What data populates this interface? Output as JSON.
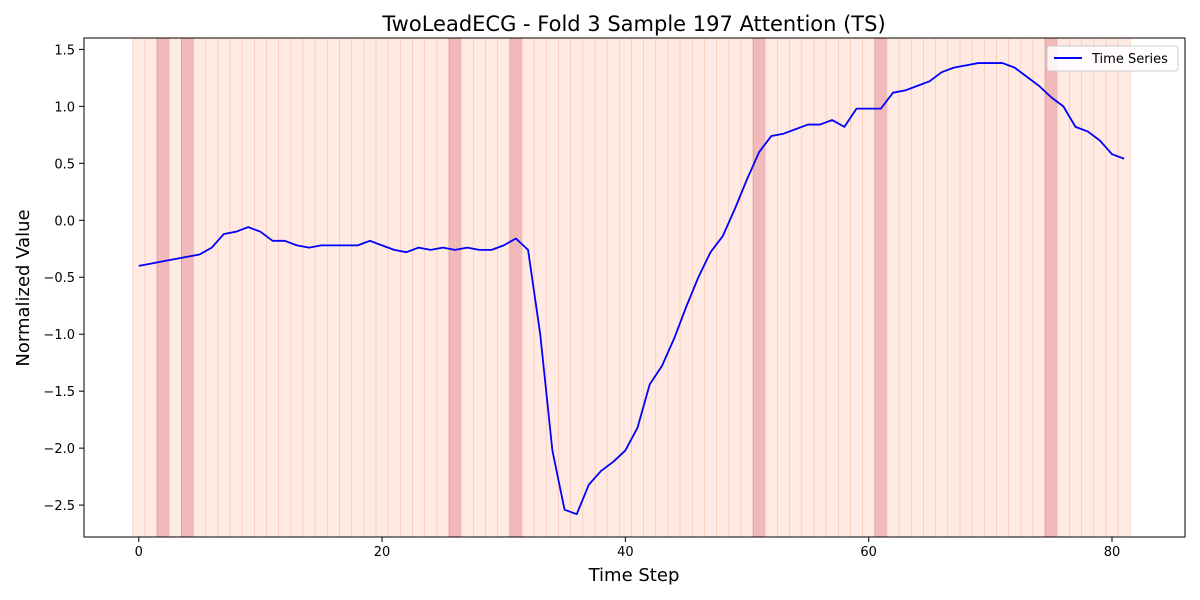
{
  "chart_data": {
    "type": "line",
    "title": "TwoLeadECG - Fold 3 Sample 197 Attention (TS)",
    "xlabel": "Time Step",
    "ylabel": "Normalized Value",
    "xlim": [
      -4.5,
      86
    ],
    "ylim": [
      -2.78,
      1.6
    ],
    "xticks": [
      0,
      20,
      40,
      60,
      80
    ],
    "yticks": [
      1.5,
      1.0,
      0.5,
      0.0,
      -0.5,
      -1.0,
      -1.5,
      -2.0,
      -2.5
    ],
    "xtick_labels": [
      "0",
      "20",
      "40",
      "60",
      "80"
    ],
    "ytick_labels": [
      "1.5",
      "1.0",
      "0.5",
      "0.0",
      "−0.5",
      "−1.0",
      "−1.5",
      "−2.0",
      "−2.5"
    ],
    "legend": {
      "position": "top-right",
      "entries": [
        "Time Series"
      ]
    },
    "colors": {
      "line": "#0000ff",
      "attention_low": "#fdd9cc",
      "attention_high": "#e88a8a"
    },
    "attention_high_steps": [
      2,
      4,
      26,
      31,
      51,
      61,
      75
    ],
    "series": [
      {
        "name": "Time Series",
        "x": [
          0,
          1,
          2,
          3,
          4,
          5,
          6,
          7,
          8,
          9,
          10,
          11,
          12,
          13,
          14,
          15,
          16,
          17,
          18,
          19,
          20,
          21,
          22,
          23,
          24,
          25,
          26,
          27,
          28,
          29,
          30,
          31,
          32,
          33,
          34,
          35,
          36,
          37,
          38,
          39,
          40,
          41,
          42,
          43,
          44,
          45,
          46,
          47,
          48,
          49,
          50,
          51,
          52,
          53,
          54,
          55,
          56,
          57,
          58,
          59,
          60,
          61,
          62,
          63,
          64,
          65,
          66,
          67,
          68,
          69,
          70,
          71,
          72,
          73,
          74,
          75,
          76,
          77,
          78,
          79,
          80,
          81
        ],
        "values": [
          -0.4,
          -0.38,
          -0.36,
          -0.34,
          -0.32,
          -0.3,
          -0.24,
          -0.12,
          -0.1,
          -0.06,
          -0.1,
          -0.18,
          -0.18,
          -0.22,
          -0.24,
          -0.22,
          -0.22,
          -0.22,
          -0.22,
          -0.18,
          -0.22,
          -0.26,
          -0.28,
          -0.24,
          -0.26,
          -0.24,
          -0.26,
          -0.24,
          -0.26,
          -0.26,
          -0.22,
          -0.16,
          -0.26,
          -1.0,
          -2.02,
          -2.54,
          -2.58,
          -2.32,
          -2.2,
          -2.12,
          -2.02,
          -1.82,
          -1.44,
          -1.28,
          -1.04,
          -0.76,
          -0.5,
          -0.28,
          -0.14,
          0.1,
          0.36,
          0.6,
          0.74,
          0.76,
          0.8,
          0.84,
          0.84,
          0.88,
          0.82,
          0.98,
          0.98,
          0.98,
          1.12,
          1.14,
          1.18,
          1.22,
          1.3,
          1.34,
          1.36,
          1.38,
          1.38,
          1.38,
          1.34,
          1.26,
          1.18,
          1.08,
          1.0,
          0.82,
          0.78,
          0.7,
          0.58,
          0.54
        ]
      }
    ]
  }
}
